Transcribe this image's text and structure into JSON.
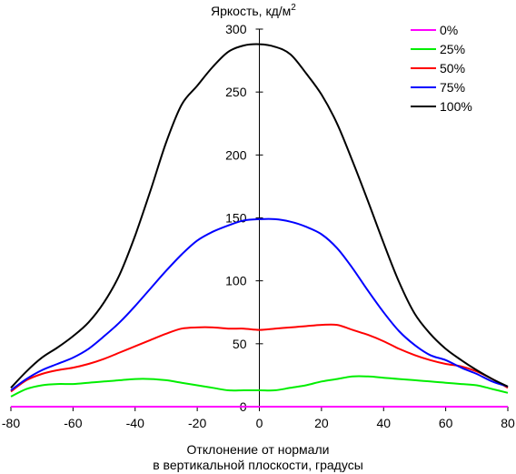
{
  "chart_data": {
    "type": "line",
    "title": "",
    "ylabel": "Яркость, кд/м",
    "ylabel_sup": "2",
    "xlabel_line1": "Отклонение от нормали",
    "xlabel_line2": "в вертикальной плоскости, градусы",
    "xlim": [
      -80,
      80
    ],
    "ylim": [
      0,
      300
    ],
    "xticks": [
      -80,
      -60,
      -40,
      -20,
      0,
      20,
      40,
      60,
      80
    ],
    "yticks": [
      0,
      50,
      100,
      150,
      200,
      250,
      300
    ],
    "grid": false,
    "legend_position": "top-right",
    "x": [
      -80,
      -75,
      -70,
      -65,
      -60,
      -55,
      -50,
      -45,
      -40,
      -35,
      -30,
      -25,
      -20,
      -15,
      -10,
      -5,
      0,
      5,
      10,
      15,
      20,
      25,
      30,
      35,
      40,
      45,
      50,
      55,
      60,
      65,
      70,
      75,
      80
    ],
    "series": [
      {
        "name": "0%",
        "color": "#ff00ff",
        "values": [
          0,
          0,
          0,
          0,
          0,
          0,
          0,
          0,
          0,
          0,
          0,
          0,
          0,
          0,
          0,
          0,
          0,
          0,
          0,
          0,
          0,
          0,
          0,
          0,
          0,
          0,
          0,
          0,
          0,
          0,
          0,
          0,
          0
        ]
      },
      {
        "name": "25%",
        "color": "#00ee00",
        "values": [
          8,
          14,
          17,
          18,
          18,
          19,
          20,
          21,
          22,
          22,
          21,
          19,
          17,
          15,
          13,
          13,
          13,
          13,
          15,
          17,
          20,
          22,
          24,
          24,
          23,
          22,
          21,
          20,
          19,
          18,
          17,
          14,
          11
        ]
      },
      {
        "name": "50%",
        "color": "#ff0000",
        "values": [
          12,
          21,
          26,
          29,
          31,
          34,
          38,
          43,
          48,
          53,
          58,
          62,
          63,
          63,
          62,
          62,
          61,
          62,
          63,
          64,
          65,
          65,
          61,
          57,
          52,
          46,
          41,
          37,
          34,
          32,
          28,
          22,
          15
        ]
      },
      {
        "name": "75%",
        "color": "#0000ff",
        "values": [
          13,
          22,
          29,
          34,
          39,
          46,
          56,
          67,
          80,
          94,
          108,
          121,
          132,
          139,
          144,
          148,
          149,
          149,
          147,
          143,
          137,
          126,
          110,
          92,
          75,
          60,
          49,
          41,
          37,
          31,
          26,
          20,
          16
        ]
      },
      {
        "name": "100%",
        "color": "#000000",
        "values": [
          15,
          28,
          39,
          47,
          56,
          67,
          83,
          105,
          136,
          172,
          210,
          240,
          255,
          270,
          282,
          287,
          288,
          286,
          280,
          265,
          248,
          225,
          195,
          163,
          130,
          99,
          74,
          58,
          46,
          37,
          29,
          22,
          16
        ]
      }
    ]
  }
}
